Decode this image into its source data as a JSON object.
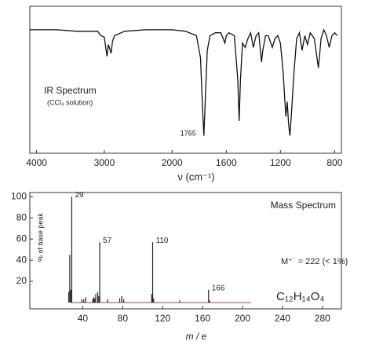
{
  "chart_data": [
    {
      "type": "line",
      "title": "IR Spectrum",
      "subtitle": "(CCl₄ solution)",
      "xlabel": "ν (cm⁻¹)",
      "peak_label": 1765,
      "xscale_break": 2000,
      "xlim": [
        4100,
        750
      ],
      "xticks": [
        4000,
        3000,
        2000,
        1600,
        1200,
        800
      ],
      "ylim": [
        0,
        100
      ],
      "x": [
        4100,
        3700,
        3400,
        3100,
        3050,
        3000,
        2980,
        2960,
        2940,
        2900,
        2880,
        2850,
        2700,
        2400,
        2100,
        2000,
        1900,
        1820,
        1790,
        1775,
        1765,
        1755,
        1740,
        1720,
        1680,
        1640,
        1610,
        1600,
        1580,
        1540,
        1515,
        1505,
        1495,
        1480,
        1460,
        1440,
        1420,
        1400,
        1380,
        1360,
        1340,
        1330,
        1310,
        1290,
        1260,
        1240,
        1220,
        1200,
        1180,
        1170,
        1160,
        1150,
        1140,
        1130,
        1120,
        1100,
        1080,
        1060,
        1040,
        1020,
        1000,
        980,
        950,
        920,
        900,
        880,
        860,
        840,
        820,
        800,
        780
      ],
      "series": [
        {
          "color": "#111111",
          "values": [
            84,
            84,
            83,
            83,
            80,
            79,
            72,
            66,
            74,
            68,
            76,
            80,
            83,
            84,
            84,
            84,
            83,
            80,
            65,
            30,
            12,
            35,
            70,
            80,
            82,
            82,
            75,
            80,
            82,
            80,
            50,
            22,
            50,
            75,
            72,
            78,
            82,
            72,
            80,
            82,
            62,
            70,
            80,
            80,
            72,
            78,
            80,
            75,
            55,
            40,
            25,
            35,
            20,
            12,
            25,
            55,
            78,
            82,
            70,
            80,
            74,
            82,
            78,
            58,
            78,
            84,
            80,
            72,
            80,
            82,
            80
          ]
        }
      ]
    },
    {
      "type": "bar",
      "title": "Mass Spectrum",
      "ylabel": "% of base peak",
      "xlabel": "m / e",
      "annotations": [
        "M⁺˙ = 222 (< 1%)",
        "C₁₂H₁₄O₄"
      ],
      "labeled_peaks": [
        29,
        57,
        110,
        166
      ],
      "xlim": [
        -13,
        299
      ],
      "xticks": [
        40,
        80,
        120,
        160,
        200,
        240,
        280
      ],
      "ylim": [
        -6,
        104
      ],
      "yticks": [
        20,
        40,
        60,
        80,
        100
      ],
      "color": "#222222",
      "x": [
        26,
        27,
        28,
        29,
        39,
        41,
        43,
        50,
        51,
        52,
        53,
        55,
        56,
        57,
        65,
        77,
        79,
        81,
        109,
        110,
        111,
        137,
        166,
        167
      ],
      "values": [
        10,
        45,
        12,
        100,
        3,
        3,
        5,
        3,
        5,
        4,
        8,
        10,
        6,
        57,
        3,
        4,
        6,
        3,
        8,
        57,
        4,
        2,
        12,
        2
      ]
    }
  ]
}
